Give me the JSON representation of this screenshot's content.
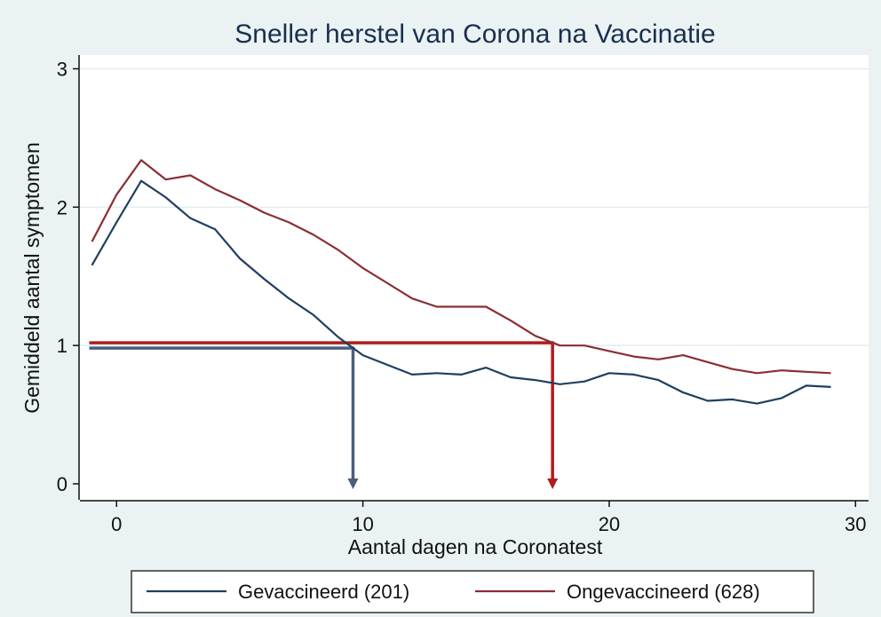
{
  "chart_data": {
    "type": "line",
    "title": "Sneller herstel van Corona na Vaccinatie",
    "xlabel": "Aantal dagen na Coronatest",
    "ylabel": "Gemiddeld aantal symptomen",
    "xlim": [
      -1,
      30
    ],
    "ylim": [
      0,
      3
    ],
    "x_ticks": [
      0,
      10,
      20,
      30
    ],
    "y_ticks": [
      0,
      1,
      2,
      3
    ],
    "grid": "horizontal",
    "legend_position": "bottom",
    "x": [
      -1,
      0,
      1,
      2,
      3,
      4,
      5,
      6,
      7,
      8,
      9,
      10,
      11,
      12,
      13,
      14,
      15,
      16,
      17,
      18,
      19,
      20,
      21,
      22,
      23,
      24,
      25,
      26,
      27,
      28,
      29
    ],
    "series": [
      {
        "name": "Gevaccineerd (201)",
        "color": "#1f3f5f",
        "values": [
          1.58,
          1.89,
          2.19,
          2.07,
          1.92,
          1.84,
          1.63,
          1.48,
          1.34,
          1.22,
          1.06,
          0.93,
          0.86,
          0.79,
          0.8,
          0.79,
          0.84,
          0.77,
          0.75,
          0.72,
          0.74,
          0.8,
          0.79,
          0.75,
          0.66,
          0.6,
          0.61,
          0.58,
          0.62,
          0.71,
          0.7
        ]
      },
      {
        "name": "Ongevaccineerd (628)",
        "color": "#8b2e33",
        "values": [
          1.75,
          2.09,
          2.34,
          2.2,
          2.23,
          2.13,
          2.05,
          1.96,
          1.89,
          1.8,
          1.69,
          1.56,
          1.45,
          1.34,
          1.28,
          1.28,
          1.28,
          1.18,
          1.07,
          1.0,
          1.0,
          0.96,
          0.92,
          0.9,
          0.93,
          0.88,
          0.83,
          0.8,
          0.82,
          0.81,
          0.8
        ]
      }
    ],
    "annotations": [
      {
        "type": "threshold",
        "y": 1,
        "x_end": 9.6,
        "color": "#4a5f7a"
      },
      {
        "type": "threshold",
        "y": 1,
        "x_end": 17.7,
        "color": "#b01c1c"
      }
    ]
  }
}
